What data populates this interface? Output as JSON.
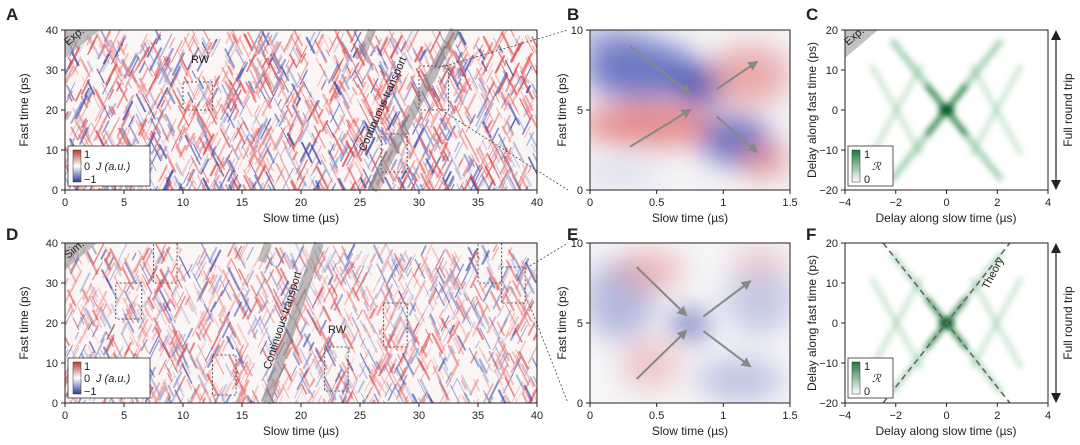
{
  "panels": {
    "A": {
      "letter": "A",
      "tag": "Exp.",
      "rw_label": "RW",
      "transport_label": "Continuous transport",
      "x_ticks": [
        "0",
        "5",
        "10",
        "15",
        "20",
        "25",
        "30",
        "35",
        "40"
      ],
      "y_ticks": [
        "0",
        "10",
        "20",
        "30",
        "40"
      ],
      "xlabel": "Slow time (µs)",
      "ylabel": "Fast time (ps)",
      "legend": {
        "top": "1",
        "mid": "0",
        "bottom": "−1",
        "label": "J (a.u.)"
      }
    },
    "B": {
      "letter": "B",
      "x_ticks": [
        "0",
        "0.5",
        "1",
        "1.5"
      ],
      "y_ticks": [
        "0",
        "5",
        "10"
      ],
      "xlabel": "Slow time (µs)",
      "ylabel": "Fast time (ps)"
    },
    "C": {
      "letter": "C",
      "tag": "Exp.",
      "x_ticks": [
        "−4",
        "−2",
        "0",
        "2",
        "4"
      ],
      "y_ticks": [
        "−20",
        "−10",
        "0",
        "10",
        "20"
      ],
      "xlabel": "Delay along slow time (µs)",
      "ylabel": "Delay along fast time (ps)",
      "legend": {
        "top": "1",
        "bottom": "0",
        "label": "ℛ"
      },
      "side_label": "Full round trip"
    },
    "D": {
      "letter": "D",
      "tag": "Sim.",
      "rw_label": "RW",
      "transport_label": "Continuous transport",
      "x_ticks": [
        "0",
        "5",
        "10",
        "15",
        "20",
        "25",
        "30",
        "35",
        "40"
      ],
      "y_ticks": [
        "0",
        "10",
        "20",
        "30",
        "40"
      ],
      "xlabel": "Slow time (µs)",
      "ylabel": "Fast time (ps)",
      "legend": {
        "top": "1",
        "mid": "0",
        "bottom": "−1",
        "label": "J (a.u.)"
      }
    },
    "E": {
      "letter": "E",
      "x_ticks": [
        "0",
        "0.5",
        "1",
        "1.5"
      ],
      "y_ticks": [
        "0",
        "5",
        "10"
      ],
      "xlabel": "Slow time (µs)",
      "ylabel": "Fast time (ps)"
    },
    "F": {
      "letter": "F",
      "theory_label": "Theory",
      "x_ticks": [
        "−4",
        "−2",
        "0",
        "2",
        "4"
      ],
      "y_ticks": [
        "−20",
        "−10",
        "0",
        "10",
        "20"
      ],
      "xlabel": "Delay along slow time (µs)",
      "ylabel": "Delay along fast time (ps)",
      "legend": {
        "top": "1",
        "bottom": "0",
        "label": "ℛ"
      },
      "side_label": "Full round trip"
    }
  },
  "chart_data": [
    {
      "type": "heatmap",
      "title": "A",
      "x": [
        0,
        40
      ],
      "y": [
        0,
        40
      ],
      "xlim": [
        0,
        40
      ],
      "ylim": [
        0,
        40
      ],
      "rw_boxes": [
        {
          "x": [
            10,
            12.5
          ],
          "y": [
            20,
            27
          ]
        },
        {
          "x": [
            30,
            32.5
          ],
          "y": [
            20,
            31
          ]
        },
        {
          "x": [
            26.8,
            29
          ],
          "y": [
            4.5,
            14
          ]
        }
      ],
      "transport_band": {
        "from": [
          25.8,
          0
        ],
        "to": [
          33.5,
          40
        ]
      },
      "colorscale": "red-white-blue",
      "clim": [
        -1,
        1
      ]
    },
    {
      "type": "heatmap",
      "title": "B",
      "xlim": [
        0,
        1.5
      ],
      "ylim": [
        0,
        10
      ],
      "arrows": [
        {
          "from": [
            0.3,
            9
          ],
          "to": [
            0.75,
            6
          ]
        },
        {
          "from": [
            0.3,
            2.7
          ],
          "to": [
            0.75,
            5
          ]
        },
        {
          "from": [
            0.95,
            6.3
          ],
          "to": [
            1.25,
            8
          ]
        },
        {
          "from": [
            0.95,
            4.6
          ],
          "to": [
            1.25,
            2.4
          ]
        }
      ]
    },
    {
      "type": "heatmap",
      "title": "C",
      "xlim": [
        -4,
        4
      ],
      "ylim": [
        -20,
        20
      ],
      "colorscale": "white-green",
      "clim": [
        0,
        1
      ]
    },
    {
      "type": "heatmap",
      "title": "D",
      "xlim": [
        0,
        40
      ],
      "ylim": [
        0,
        40
      ],
      "rw_boxes": [
        {
          "x": [
            4.3,
            6.5
          ],
          "y": [
            21,
            30
          ]
        },
        {
          "x": [
            7.5,
            9.5
          ],
          "y": [
            30,
            40
          ]
        },
        {
          "x": [
            12.5,
            14.5
          ],
          "y": [
            2,
            12
          ]
        },
        {
          "x": [
            22,
            24
          ],
          "y": [
            3,
            14
          ]
        },
        {
          "x": [
            27,
            29
          ],
          "y": [
            14,
            25
          ]
        },
        {
          "x": [
            35,
            37
          ],
          "y": [
            30,
            40
          ]
        },
        {
          "x": [
            37,
            39
          ],
          "y": [
            25,
            34
          ]
        }
      ],
      "transport_band": {
        "from": [
          17,
          0
        ],
        "to": [
          21.5,
          40
        ]
      },
      "colorscale": "red-white-blue",
      "clim": [
        -1,
        1
      ]
    },
    {
      "type": "heatmap",
      "title": "E",
      "xlim": [
        0,
        1.5
      ],
      "ylim": [
        0,
        10
      ],
      "arrows": [
        {
          "from": [
            0.35,
            1.5
          ],
          "to": [
            0.72,
            4.5
          ]
        },
        {
          "from": [
            0.35,
            8.5
          ],
          "to": [
            0.72,
            5.5
          ]
        },
        {
          "from": [
            0.85,
            5.4
          ],
          "to": [
            1.2,
            7.6
          ]
        },
        {
          "from": [
            0.85,
            4.5
          ],
          "to": [
            1.2,
            2.3
          ]
        }
      ]
    },
    {
      "type": "heatmap",
      "title": "F",
      "xlim": [
        -4,
        4
      ],
      "ylim": [
        -20,
        20
      ],
      "theory_lines": [
        {
          "from": [
            -2.5,
            -20
          ],
          "to": [
            2.5,
            20
          ]
        },
        {
          "from": [
            -2.5,
            20
          ],
          "to": [
            2.5,
            -20
          ]
        }
      ],
      "colorscale": "white-green",
      "clim": [
        0,
        1
      ]
    }
  ]
}
